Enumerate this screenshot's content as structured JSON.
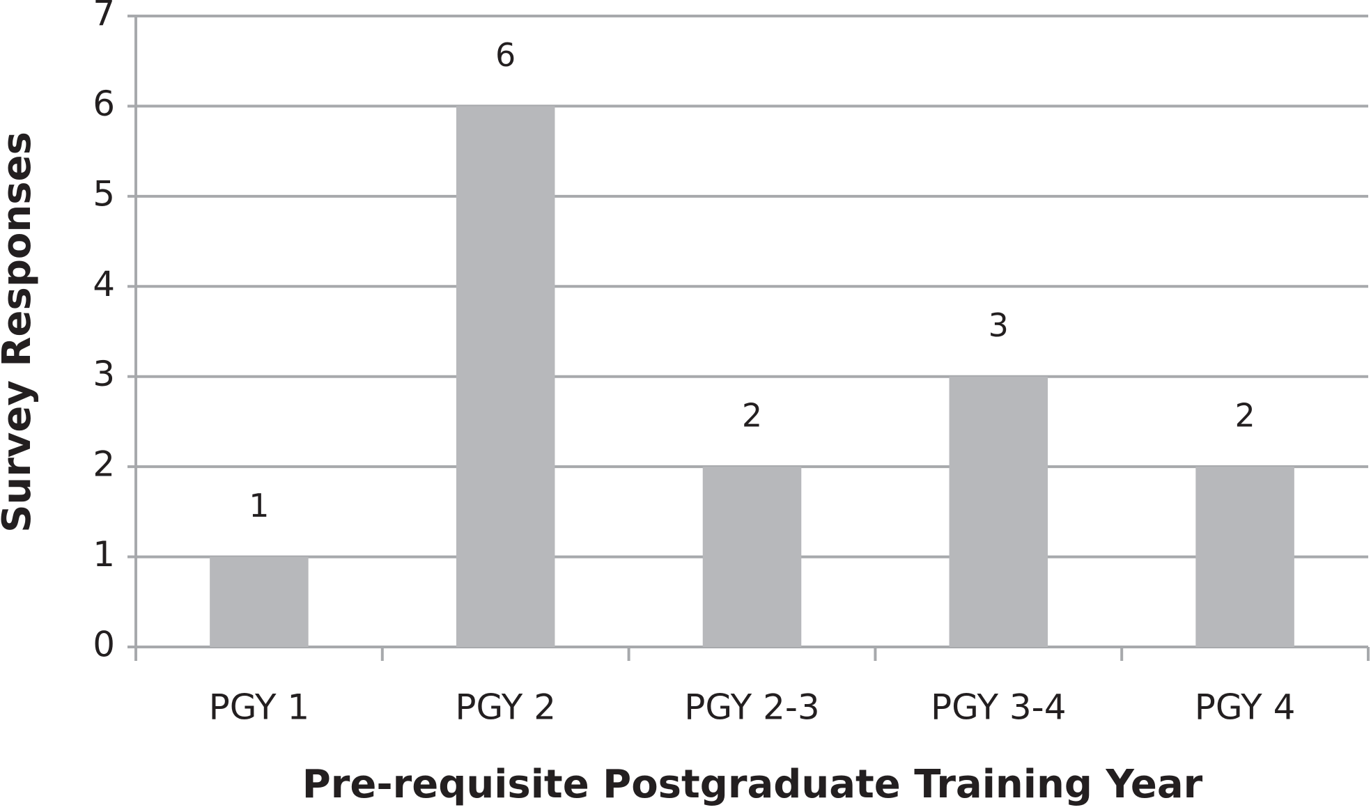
{
  "chart_data": {
    "type": "bar",
    "x_label": "Pre-requisite Postgraduate Training Year",
    "y_label": "Survey Responses",
    "categories": [
      "PGY 1",
      "PGY 2",
      "PGY 2-3",
      "PGY 3-4",
      "PGY 4"
    ],
    "values": [
      1,
      6,
      2,
      3,
      2
    ],
    "color": "#b7b8bb",
    "ylim": [
      0,
      7
    ],
    "yticks": [
      0,
      1,
      2,
      3,
      4,
      5,
      6,
      7
    ],
    "grid": true
  }
}
